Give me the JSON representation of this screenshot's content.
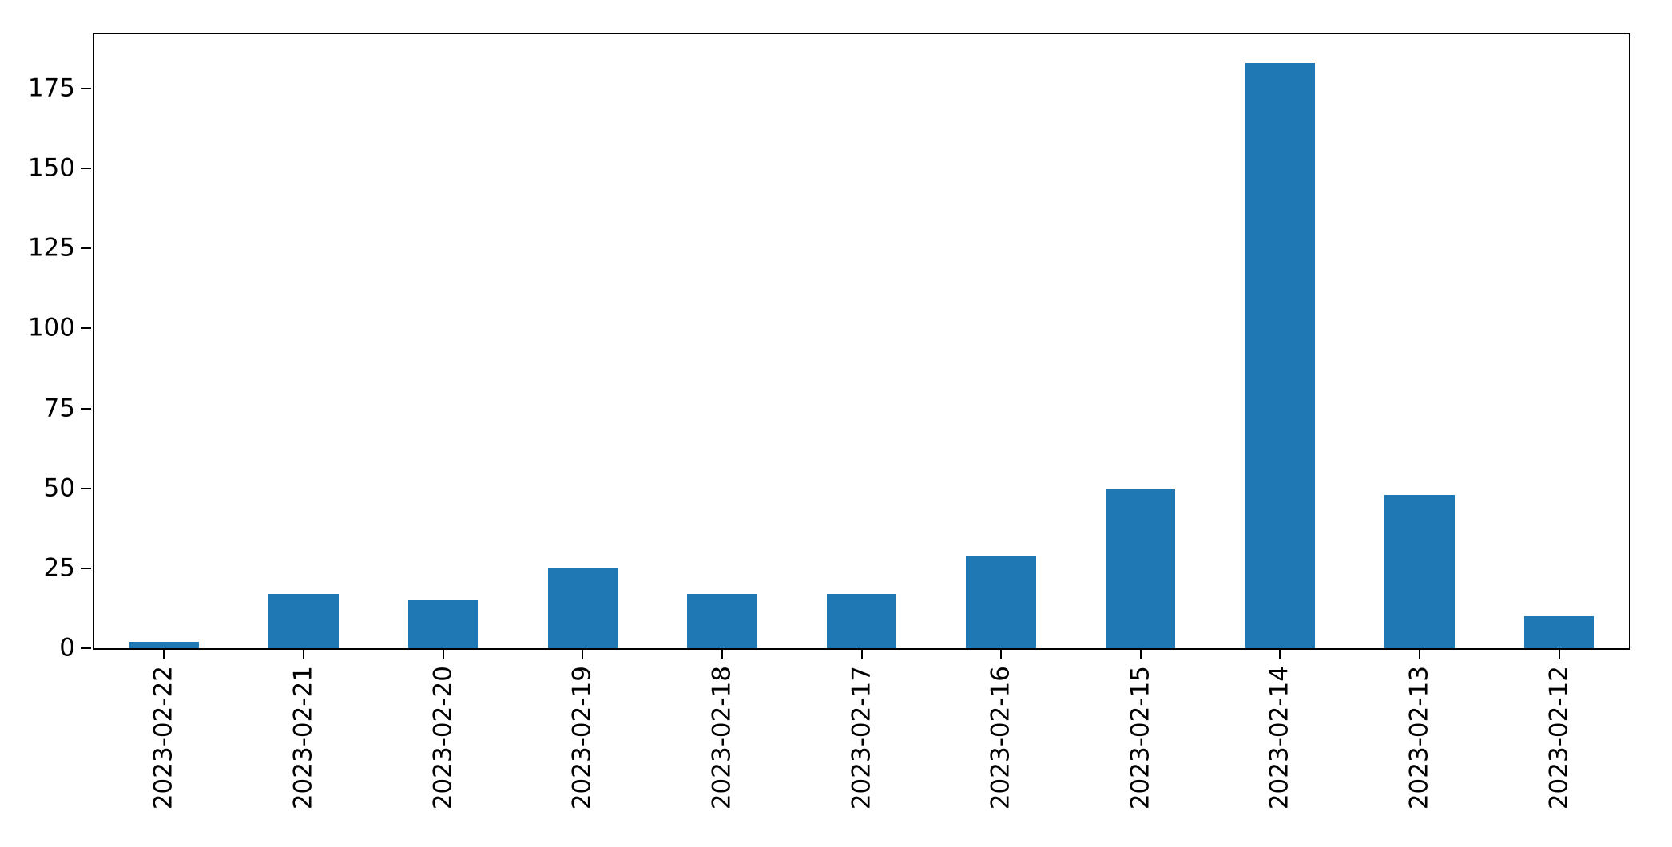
{
  "chart_data": {
    "type": "bar",
    "title": "",
    "xlabel": "",
    "ylabel": "",
    "categories": [
      "2023-02-22",
      "2023-02-21",
      "2023-02-20",
      "2023-02-19",
      "2023-02-18",
      "2023-02-17",
      "2023-02-16",
      "2023-02-15",
      "2023-02-14",
      "2023-02-13",
      "2023-02-12"
    ],
    "values": [
      2,
      17,
      15,
      25,
      17,
      17,
      29,
      50,
      183,
      48,
      10
    ],
    "ylim": [
      0,
      192
    ],
    "y_ticks": [
      0,
      25,
      50,
      75,
      100,
      125,
      150,
      175
    ],
    "bar_color": "#1f77b4",
    "bar_width_fraction": 0.5,
    "grid": false,
    "legend": "none",
    "x_tick_rotation": 90
  }
}
